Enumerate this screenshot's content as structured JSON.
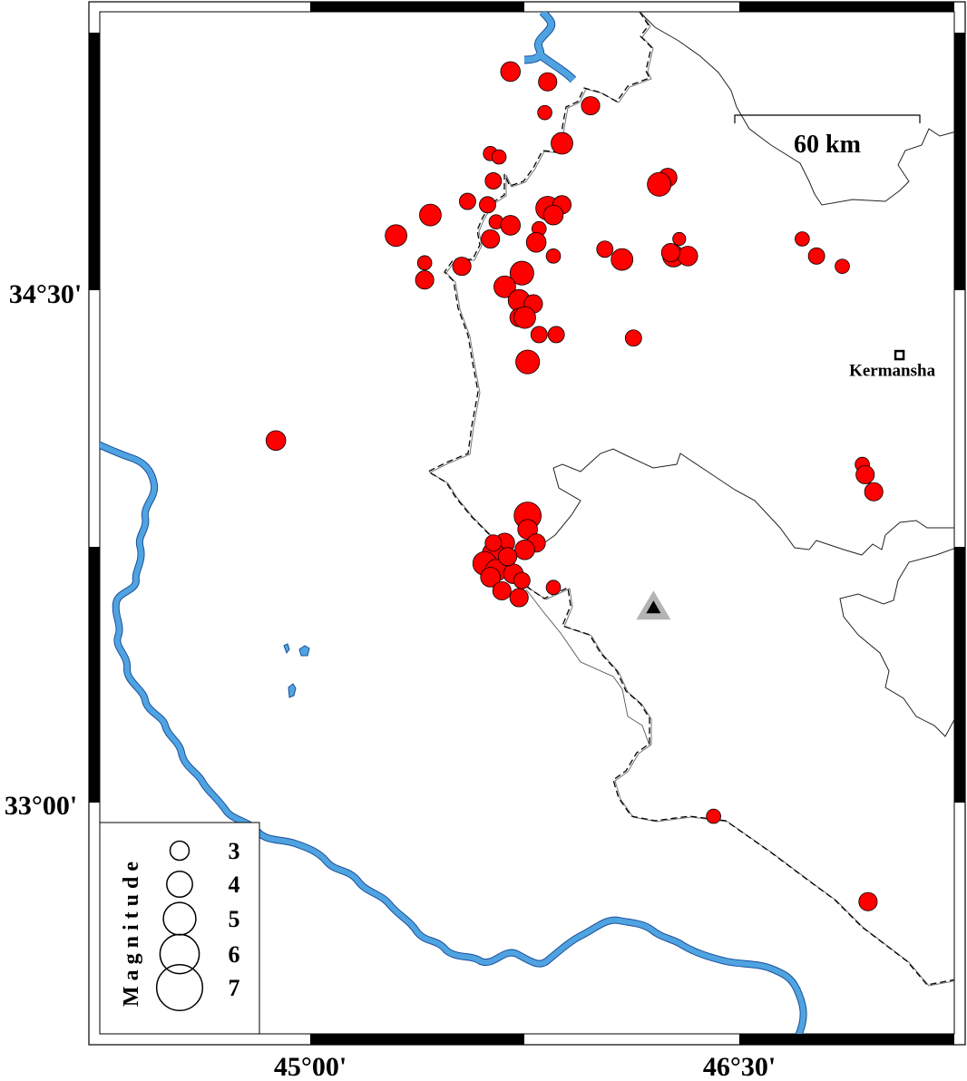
{
  "map": {
    "projection": "mercator",
    "extent": {
      "lon": [
        44.63,
        47.62
      ],
      "lat": [
        32.5,
        35.32
      ]
    },
    "axes": {
      "lon_ticks": [
        {
          "value": 45.0,
          "label": "45°00'"
        },
        {
          "value": 46.5,
          "label": "46°30'"
        }
      ],
      "lat_ticks": [
        {
          "value": 34.5,
          "label": "34°30'"
        },
        {
          "value": 33.0,
          "label": "33°00'"
        }
      ],
      "frame_interval_minutes": 45
    },
    "colors": {
      "event": "#ff0000",
      "river": "#4fa3e0",
      "station": "#000000",
      "station_halo": "#b4b4b4"
    },
    "scale_bar": {
      "label": "60 km",
      "length_km": 60
    },
    "city": {
      "name": "Kermansha",
      "lon": 47.06,
      "lat": 34.31,
      "icon": "square-marker-icon"
    },
    "station": {
      "lon": 46.2,
      "lat": 33.57,
      "icon": "triangle-station-icon"
    },
    "legend": {
      "title": "Magnitude",
      "entries": [
        {
          "mag": 3,
          "label": "3"
        },
        {
          "mag": 4,
          "label": "4"
        },
        {
          "mag": 5,
          "label": "5"
        },
        {
          "mag": 6,
          "label": "6"
        },
        {
          "mag": 7,
          "label": "7"
        }
      ]
    },
    "events": [
      [
        45.7,
        35.14,
        3.1
      ],
      [
        45.83,
        35.11,
        2.9
      ],
      [
        45.82,
        35.02,
        2.3
      ],
      [
        45.98,
        35.04,
        2.9
      ],
      [
        45.88,
        34.93,
        3.4
      ],
      [
        45.63,
        34.9,
        2.3
      ],
      [
        45.66,
        34.89,
        2.3
      ],
      [
        45.64,
        34.82,
        2.6
      ],
      [
        45.55,
        34.76,
        2.6
      ],
      [
        45.62,
        34.75,
        2.6
      ],
      [
        45.42,
        34.72,
        3.4
      ],
      [
        45.3,
        34.66,
        3.4
      ],
      [
        45.65,
        34.7,
        2.3
      ],
      [
        45.7,
        34.69,
        3.1
      ],
      [
        45.63,
        34.65,
        2.9
      ],
      [
        45.8,
        34.68,
        2.3
      ],
      [
        45.79,
        34.64,
        3.1
      ],
      [
        45.85,
        34.6,
        2.3
      ],
      [
        45.83,
        34.74,
        3.7
      ],
      [
        45.88,
        34.75,
        2.9
      ],
      [
        45.85,
        34.72,
        3.1
      ],
      [
        45.4,
        34.58,
        2.3
      ],
      [
        45.4,
        34.53,
        2.9
      ],
      [
        45.53,
        34.57,
        2.9
      ],
      [
        45.74,
        34.55,
        3.7
      ],
      [
        45.68,
        34.51,
        3.4
      ],
      [
        45.73,
        34.47,
        3.4
      ],
      [
        45.78,
        34.46,
        2.9
      ],
      [
        45.73,
        34.42,
        2.9
      ],
      [
        45.75,
        34.42,
        3.4
      ],
      [
        45.8,
        34.37,
        2.6
      ],
      [
        45.86,
        34.37,
        2.6
      ],
      [
        45.76,
        34.29,
        3.7
      ],
      [
        46.03,
        34.62,
        2.6
      ],
      [
        46.09,
        34.59,
        3.4
      ],
      [
        46.25,
        34.83,
        2.9
      ],
      [
        46.22,
        34.81,
        3.7
      ],
      [
        46.27,
        34.6,
        3.4
      ],
      [
        46.29,
        34.65,
        2.1
      ],
      [
        46.32,
        34.6,
        3.1
      ],
      [
        46.26,
        34.61,
        2.9
      ],
      [
        46.13,
        34.36,
        2.6
      ],
      [
        46.72,
        34.65,
        2.3
      ],
      [
        46.77,
        34.6,
        2.6
      ],
      [
        46.86,
        34.57,
        2.3
      ],
      [
        44.88,
        34.06,
        3.1
      ],
      [
        46.93,
        33.99,
        2.3
      ],
      [
        46.94,
        33.96,
        2.9
      ],
      [
        46.97,
        33.91,
        2.9
      ],
      [
        46.41,
        32.96,
        2.3
      ],
      [
        46.95,
        32.71,
        2.9
      ],
      [
        45.76,
        33.84,
        4.2
      ],
      [
        45.76,
        33.8,
        3.1
      ],
      [
        45.79,
        33.76,
        2.9
      ],
      [
        45.75,
        33.74,
        3.1
      ],
      [
        45.68,
        33.76,
        3.1
      ],
      [
        45.64,
        33.73,
        3.4
      ],
      [
        45.61,
        33.7,
        3.7
      ],
      [
        45.65,
        33.68,
        3.4
      ],
      [
        45.63,
        33.66,
        3.1
      ],
      [
        45.71,
        33.67,
        3.1
      ],
      [
        45.74,
        33.65,
        2.6
      ],
      [
        45.67,
        33.62,
        2.9
      ],
      [
        45.73,
        33.6,
        2.9
      ],
      [
        45.85,
        33.63,
        2.3
      ],
      [
        45.64,
        33.76,
        2.6
      ],
      [
        45.69,
        33.72,
        2.9
      ]
    ]
  }
}
